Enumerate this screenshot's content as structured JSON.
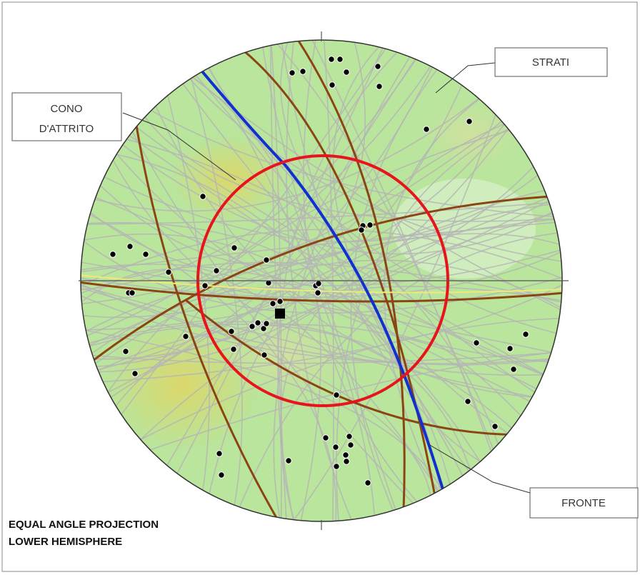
{
  "labels": {
    "strati": "STRATI",
    "cono": [
      "CONO",
      "D'ATTRITO"
    ],
    "fronte": "FRONTE"
  },
  "caption": [
    "EQUAL ANGLE PROJECTION",
    "LOWER HEMISPHERE"
  ]
}
